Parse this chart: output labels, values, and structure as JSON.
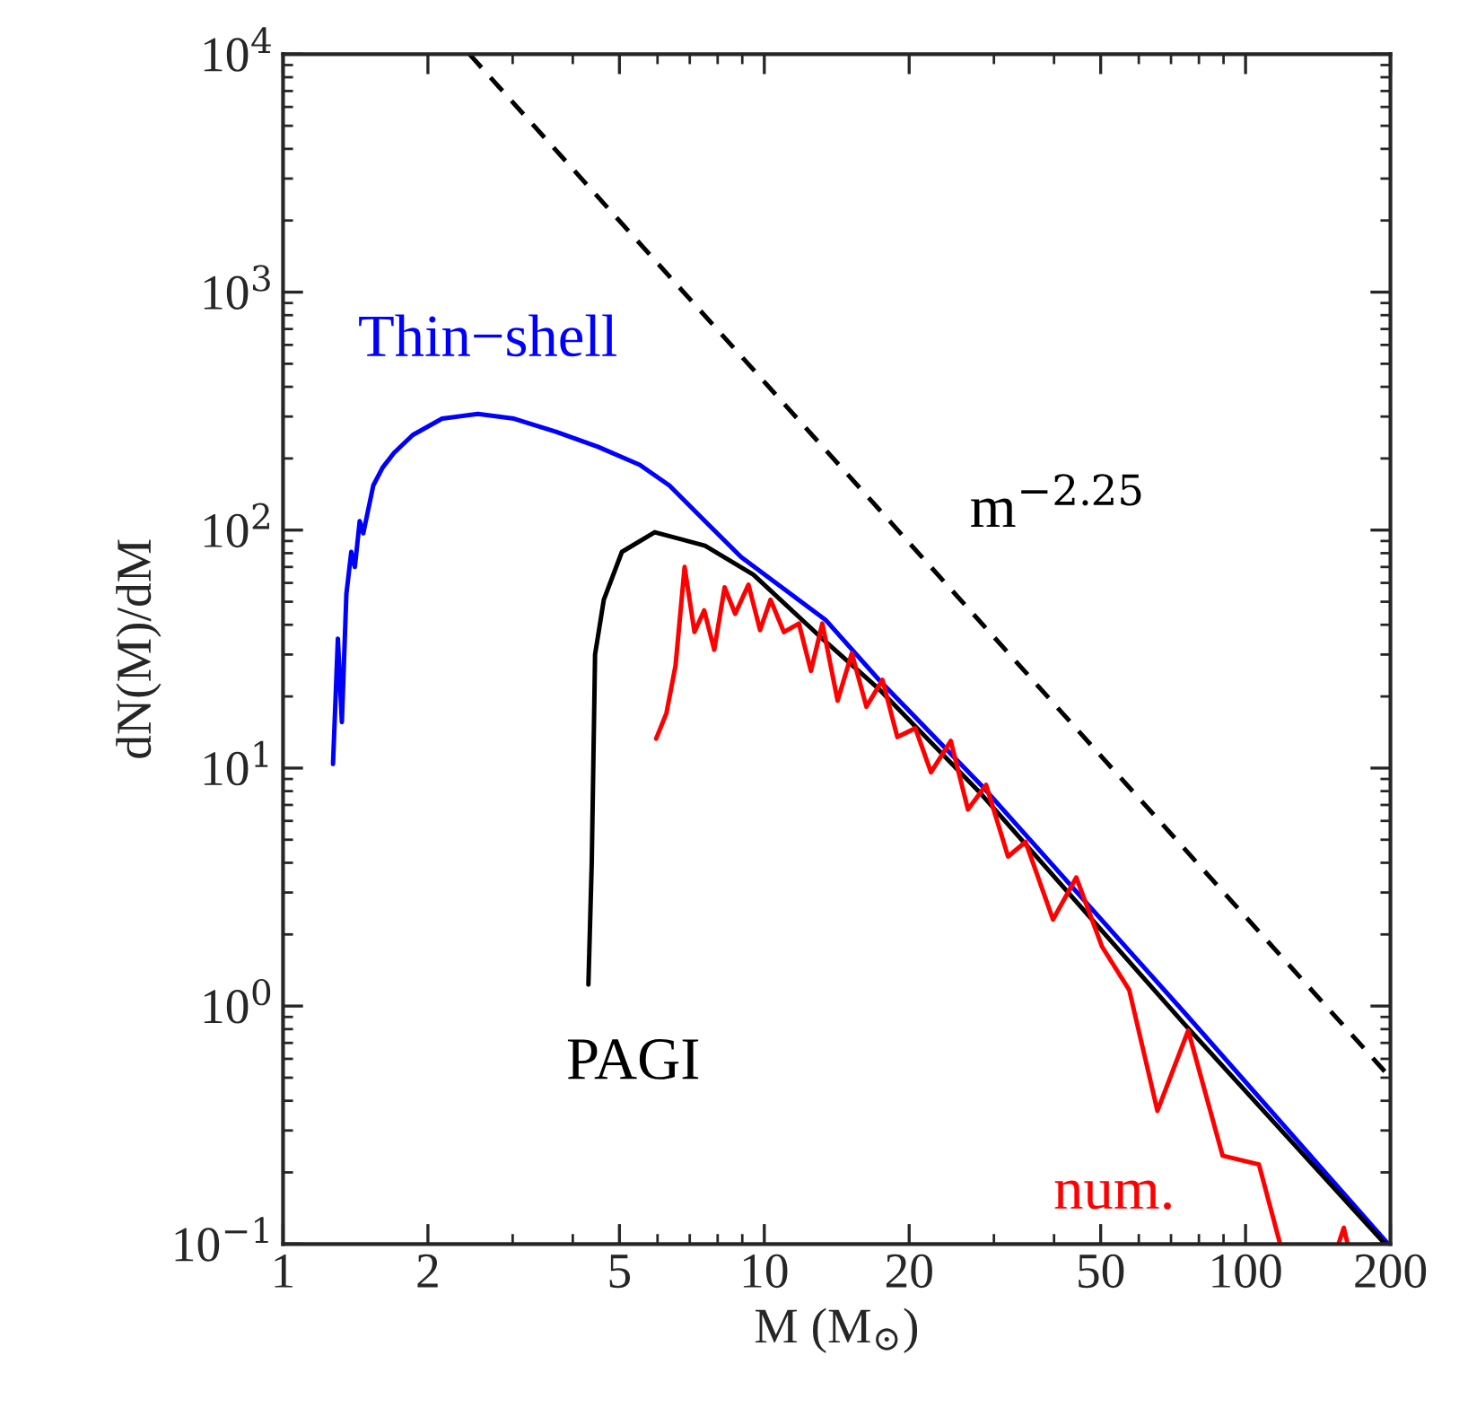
{
  "chart_data": {
    "type": "line",
    "xlabel": "M (M$_{⊙}$)",
    "ylabel": "dN(M)/dM",
    "log": "xy",
    "grid": false,
    "legend": false,
    "xlim": [
      1,
      200
    ],
    "xticks": [
      1,
      2,
      5,
      10,
      20,
      50,
      100,
      200
    ],
    "ylim": [
      0.1,
      10000
    ],
    "yticks": [
      {
        "value": 0.1,
        "label": "10$^{−1}$"
      },
      {
        "value": 1,
        "label": "10$^{0}$"
      },
      {
        "value": 10,
        "label": "10$^{1}$"
      },
      {
        "value": 100,
        "label": "10$^{2}$"
      },
      {
        "value": 1000,
        "label": "10$^{3}$"
      },
      {
        "value": 10000,
        "label": "10$^{4}$"
      }
    ],
    "series": [
      {
        "name": "Thin−shell",
        "color": "#0000ff",
        "line_style": "solid",
        "x": [
          1.27,
          1.3,
          1.325,
          1.354,
          1.386,
          1.41,
          1.443,
          1.468,
          1.54,
          1.61,
          1.7,
          1.86,
          2.14,
          2.54,
          3.02,
          3.69,
          4.51,
          5.51,
          6.35,
          7.53,
          8.95,
          13.4,
          17.3,
          28.2,
          74.6,
          198
        ],
        "values": [
          10.4,
          35,
          15.6,
          54,
          81,
          70,
          109,
          97,
          154,
          183,
          211,
          251,
          294,
          308,
          294,
          259,
          224,
          188,
          154,
          109,
          77,
          42,
          23.5,
          8.5,
          0.94,
          0.1
        ]
      },
      {
        "name": "PAGI",
        "color": "#000000",
        "line_style": "solid",
        "x": [
          4.31,
          4.38,
          4.45,
          4.64,
          5.06,
          5.92,
          7.53,
          9.49,
          13.4,
          17.3,
          28.2,
          74.6,
          195
        ],
        "values": [
          1.23,
          4.0,
          30,
          51,
          81,
          98,
          86,
          65,
          34,
          21.5,
          7.8,
          0.84,
          0.1
        ]
      },
      {
        "name": "num.",
        "color": "#ff0000",
        "line_style": "solid",
        "x": [
          5.96,
          6.26,
          6.54,
          6.83,
          7.16,
          7.5,
          7.87,
          8.27,
          8.7,
          9.27,
          9.8,
          10.3,
          10.98,
          11.8,
          12.5,
          13.2,
          14.2,
          15.2,
          16.3,
          17.6,
          18.9,
          20.6,
          22.2,
          24.4,
          26.5,
          28.9,
          32.1,
          34.9,
          39.8,
          44.5,
          50.3,
          57.3,
          65.6,
          76,
          89.6,
          106.6,
          118,
          140,
          156,
          160,
          163
        ],
        "values": [
          13.3,
          17,
          27,
          70,
          37.3,
          46,
          31.4,
          57.5,
          44.5,
          59,
          38,
          51,
          37.3,
          40.5,
          25.6,
          40.5,
          19.2,
          30.4,
          18.1,
          23.5,
          13.5,
          14.7,
          9.6,
          13,
          6.7,
          8.5,
          4.25,
          4.9,
          2.31,
          3.47,
          1.78,
          1.17,
          0.363,
          0.79,
          0.235,
          0.216,
          0.1,
          null,
          0.1,
          0.117,
          0.1
        ]
      },
      {
        "name": "m$^{−2.25}$",
        "color": "#000000",
        "line_style": "dashed",
        "x": [
          2.44,
          200
        ],
        "values": [
          10000,
          0.5
        ]
      }
    ]
  }
}
